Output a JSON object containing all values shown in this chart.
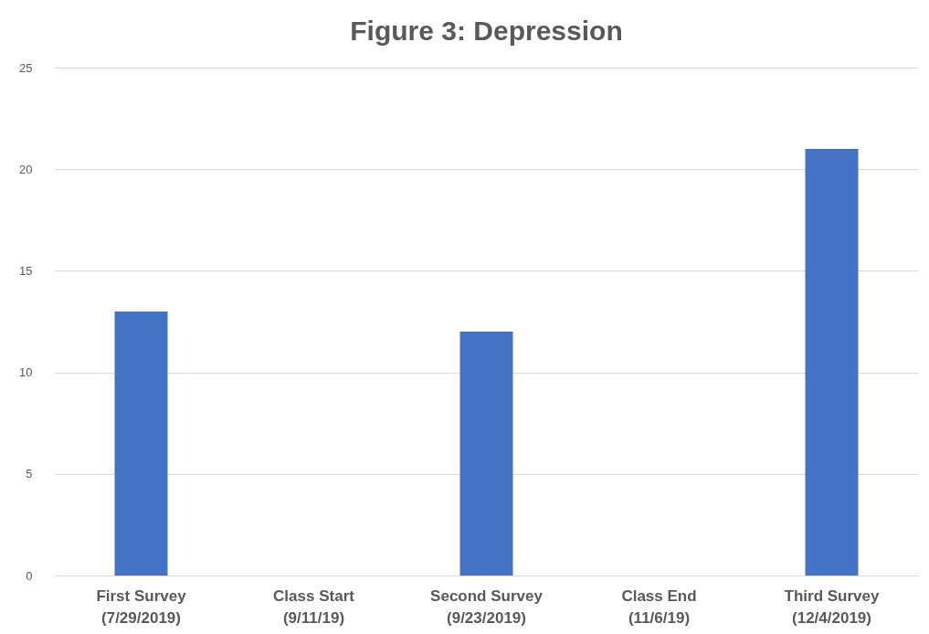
{
  "chart_data": {
    "type": "bar",
    "title": "Figure 3: Depression",
    "categories": [
      "First Survey\n(7/29/2019)",
      "Class Start\n(9/11/19)",
      "Second Survey\n(9/23/2019)",
      "Class End\n(11/6/19)",
      "Third Survey\n(12/4/2019)"
    ],
    "values": [
      13,
      null,
      12,
      null,
      21
    ],
    "color": "#4472c4",
    "ylim": [
      0,
      25
    ],
    "yticks": [
      0,
      5,
      10,
      15,
      20,
      25
    ],
    "grid": "y"
  }
}
